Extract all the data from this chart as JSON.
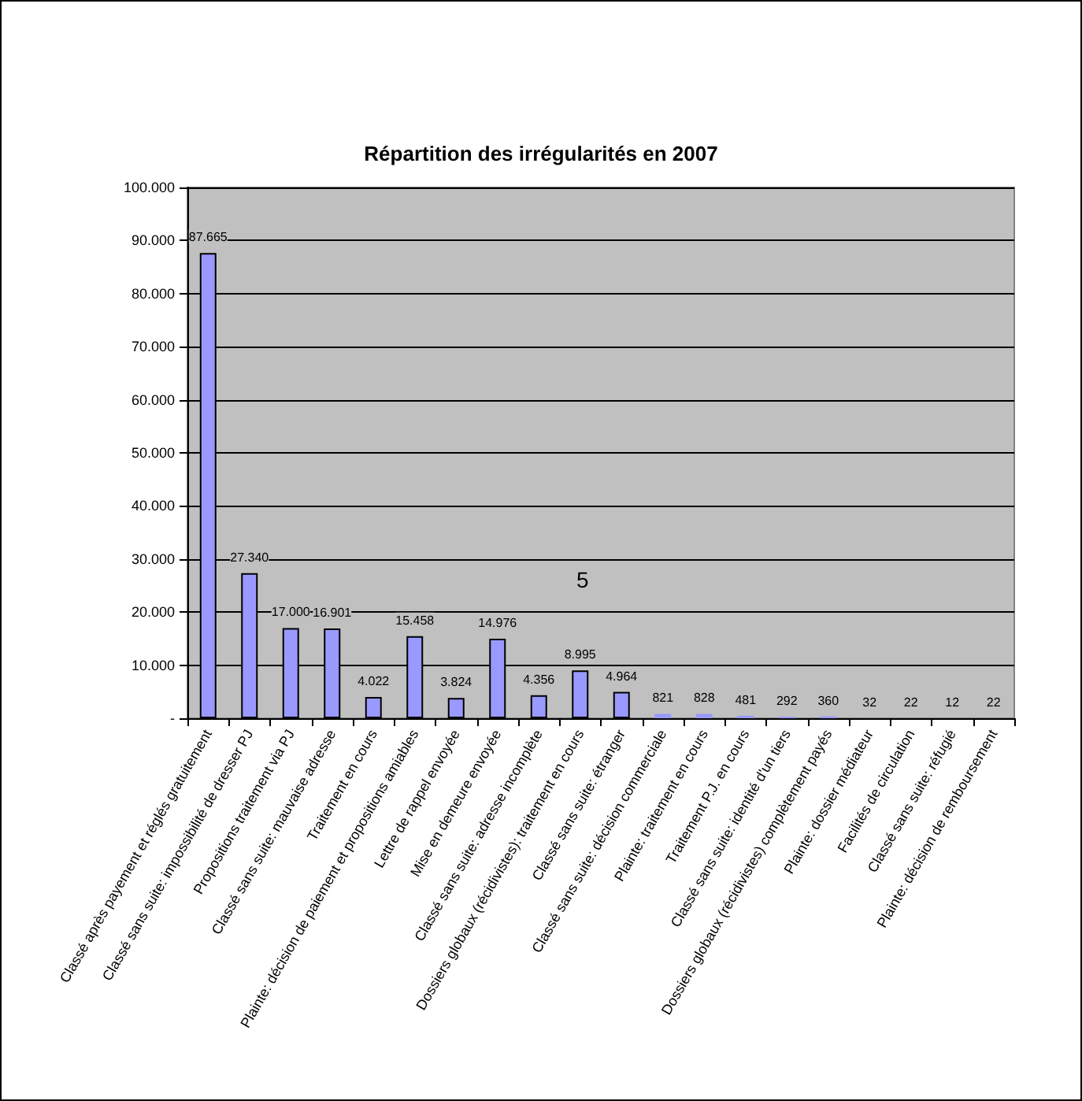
{
  "chart_data": {
    "type": "bar",
    "title": "Répartition des irrégularités en 2007",
    "categories": [
      "Classé après payement et réglés gratuitement",
      "Classé sans suite: impossibilité de dresser PJ",
      "Propositions traitement via PJ",
      "Classé sans suite: mauvaise adresse",
      "Traitement en cours",
      "Plainte: décision de paiement et propositions amiables",
      "Lettre de rappel envoyée",
      "Mise en demeure envoyée",
      "Classé sans suite: adresse incomplète",
      "Dossiers globaux (récidivistes): traitement en cours",
      "Classé sans suite: étranger",
      "Classé sans suite: décision commerciale",
      "Plainte: traitement en cours",
      "Traitement P.J. en cours",
      "Classé sans suite: identité d'un tiers",
      "Dossiers globaux (récidivistes) complètement payés",
      "Plainte: dossier médiateur",
      "Facilités de circulation",
      "Classé sans suite: réfugié",
      "Plainte: décision de remboursement"
    ],
    "values": [
      87665,
      27340,
      17000,
      16901,
      4022,
      15458,
      3824,
      14976,
      4356,
      8995,
      4964,
      821,
      828,
      481,
      292,
      360,
      32,
      22,
      12,
      22
    ],
    "value_labels": [
      "87.665",
      "27.340",
      "17.000",
      "16.901",
      "4.022",
      "15.458",
      "3.824",
      "14.976",
      "4.356",
      "8.995",
      "4.964",
      "821",
      "828",
      "481",
      "292",
      "360",
      "32",
      "22",
      "12",
      "22"
    ],
    "color": "#9999ff",
    "ylim": [
      0,
      100000
    ],
    "yticks": [
      {
        "value": 0,
        "label": "-"
      },
      {
        "value": 10000,
        "label": "10.000"
      },
      {
        "value": 20000,
        "label": "20.000"
      },
      {
        "value": 30000,
        "label": "30.000"
      },
      {
        "value": 40000,
        "label": "40.000"
      },
      {
        "value": 50000,
        "label": "50.000"
      },
      {
        "value": 60000,
        "label": "60.000"
      },
      {
        "value": 70000,
        "label": "70.000"
      },
      {
        "value": 80000,
        "label": "80.000"
      },
      {
        "value": 90000,
        "label": "90.000"
      },
      {
        "value": 100000,
        "label": "100.000"
      }
    ],
    "grid": "y",
    "annotations": [
      "5"
    ]
  }
}
